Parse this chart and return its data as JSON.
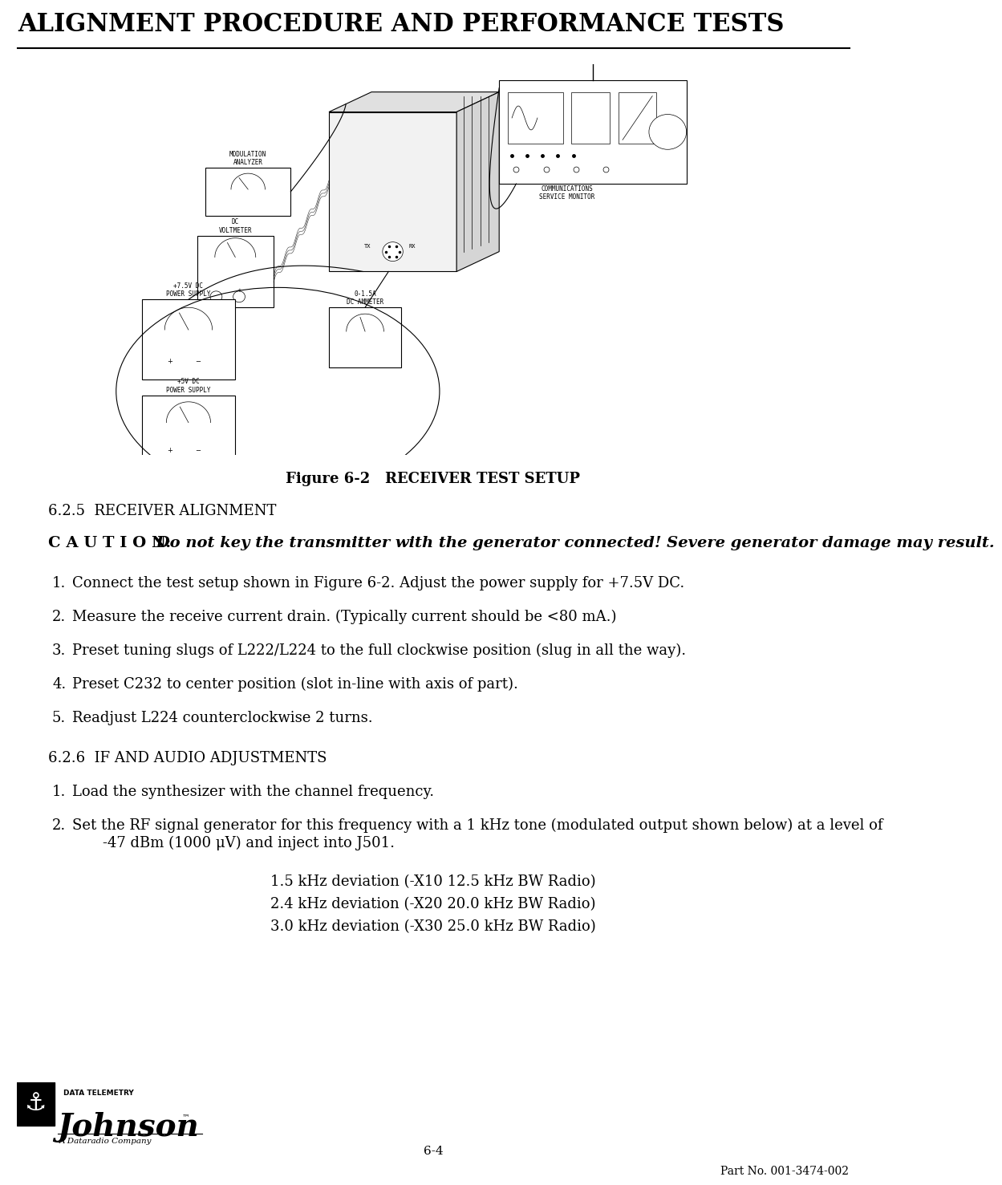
{
  "title": "ALIGNMENT PROCEDURE AND PERFORMANCE TESTS",
  "page_number": "6-4",
  "part_number": "Part No. 001-3474-002",
  "figure_caption": "Figure 6-2   RECEIVER TEST SETUP",
  "section_625_header": "6.2.5  RECEIVER ALIGNMENT",
  "caution_label": "C A U T I O N:",
  "caution_text": " Do not key the transmitter with the generator connected! Severe generator damage may result.",
  "steps_625": [
    "Connect the test setup shown in Figure 6-2. Adjust the power supply for +7.5V DC.",
    "Measure the receive current drain. (Typically current should be <80 mA.)",
    "Preset tuning slugs of L222/L224 to the full clockwise position (slug in all the way).",
    "Preset C232 to center position (slot in-line with axis of part).",
    "Readjust L224 counterclockwise 2 turns."
  ],
  "section_626_header": "6.2.6  IF AND AUDIO ADJUSTMENTS",
  "steps_626_1": "Load the synthesizer with the channel frequency.",
  "steps_626_2a": "Set the RF signal generator for this frequency with a 1 kHz tone (modulated output shown below) at a level of",
  "steps_626_2b": "    -47 dBm (1000 μV) and inject into J501.",
  "deviation_lines": [
    "1.5 kHz deviation (-X10 12.5 kHz BW Radio)",
    "2.4 kHz deviation (-X20 20.0 kHz BW Radio)",
    "3.0 kHz deviation (-X30 25.0 kHz BW Radio)"
  ],
  "bg_color": "#ffffff",
  "text_color": "#000000",
  "title_fontsize": 22,
  "body_fontsize": 13,
  "header_fontsize": 13
}
